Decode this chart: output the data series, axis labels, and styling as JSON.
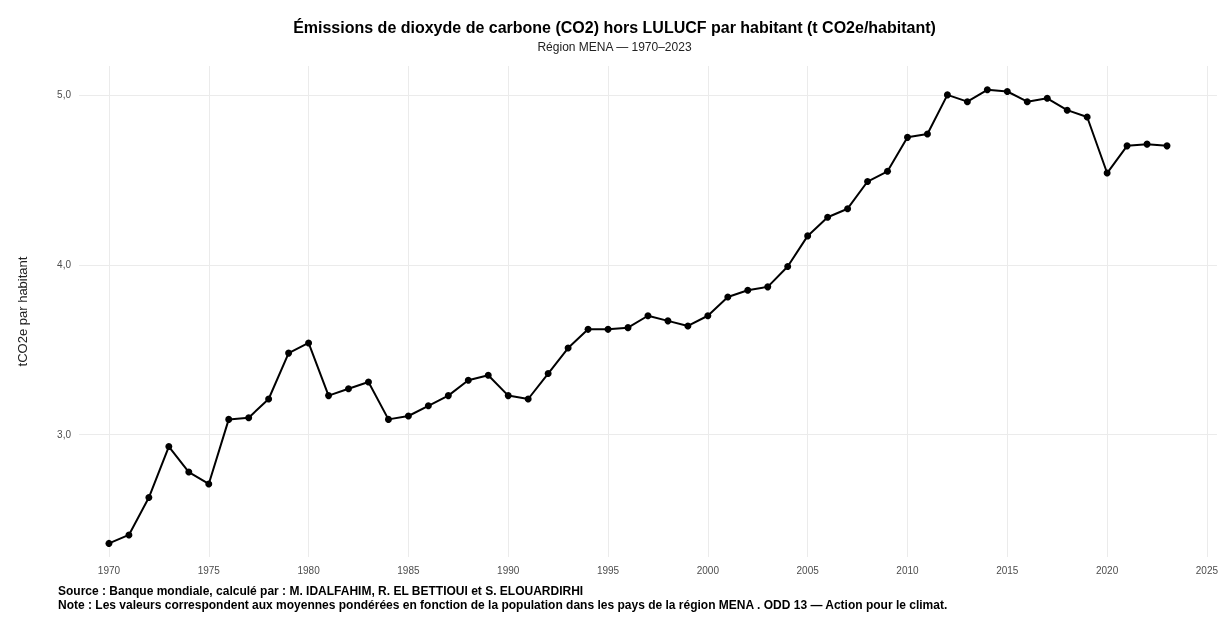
{
  "chart_data": {
    "type": "line",
    "title": "Émissions de dioxyde de carbone (CO2) hors LULUCF par habitant (t CO2e/habitant)",
    "subtitle": "Région MENA — 1970–2023",
    "ylabel": "tCO2e par habitant",
    "annotations": [
      "Source : Banque mondiale, calculé par : M. IDALFAHIM, R. EL BETTIOUI et S. ELOUARDIRHI",
      "Note : Les valeurs correspondent aux moyennes pondérées en fonction de la population dans les pays de la région MENA . ODD 13 — Action pour le climat."
    ],
    "x": [
      1970,
      1971,
      1972,
      1973,
      1974,
      1975,
      1976,
      1977,
      1978,
      1979,
      1980,
      1981,
      1982,
      1983,
      1984,
      1985,
      1986,
      1987,
      1988,
      1989,
      1990,
      1991,
      1992,
      1993,
      1994,
      1995,
      1996,
      1997,
      1998,
      1999,
      2000,
      2001,
      2002,
      2003,
      2004,
      2005,
      2006,
      2007,
      2008,
      2009,
      2010,
      2011,
      2012,
      2013,
      2014,
      2015,
      2016,
      2017,
      2018,
      2019,
      2020,
      2021,
      2022,
      2023
    ],
    "series": [
      {
        "color": "#000000",
        "values": [
          2.36,
          2.41,
          2.63,
          2.93,
          2.78,
          2.71,
          3.09,
          3.1,
          3.21,
          3.48,
          3.54,
          3.23,
          3.27,
          3.31,
          3.09,
          3.11,
          3.17,
          3.23,
          3.32,
          3.35,
          3.23,
          3.21,
          3.36,
          3.51,
          3.62,
          3.62,
          3.63,
          3.7,
          3.67,
          3.64,
          3.7,
          3.81,
          3.85,
          3.87,
          3.99,
          4.17,
          4.28,
          4.33,
          4.49,
          4.55,
          4.75,
          4.77,
          5.0,
          4.96,
          5.03,
          5.02,
          4.96,
          4.98,
          4.91,
          4.87,
          4.54,
          4.7,
          4.71,
          4.7
        ]
      }
    ],
    "xlim": [
      1968.5,
      2025.5
    ],
    "xticks": [
      1970,
      1975,
      1980,
      1985,
      1990,
      1995,
      2000,
      2005,
      2010,
      2015,
      2020,
      2025
    ],
    "ylim": [
      2.28,
      5.17
    ],
    "yticks": [
      {
        "value": 3,
        "label": "3,0"
      },
      {
        "value": 4,
        "label": "4,0"
      },
      {
        "value": 5,
        "label": "5,0"
      }
    ],
    "grid": true,
    "marker": "circle",
    "line_style": "solid"
  }
}
